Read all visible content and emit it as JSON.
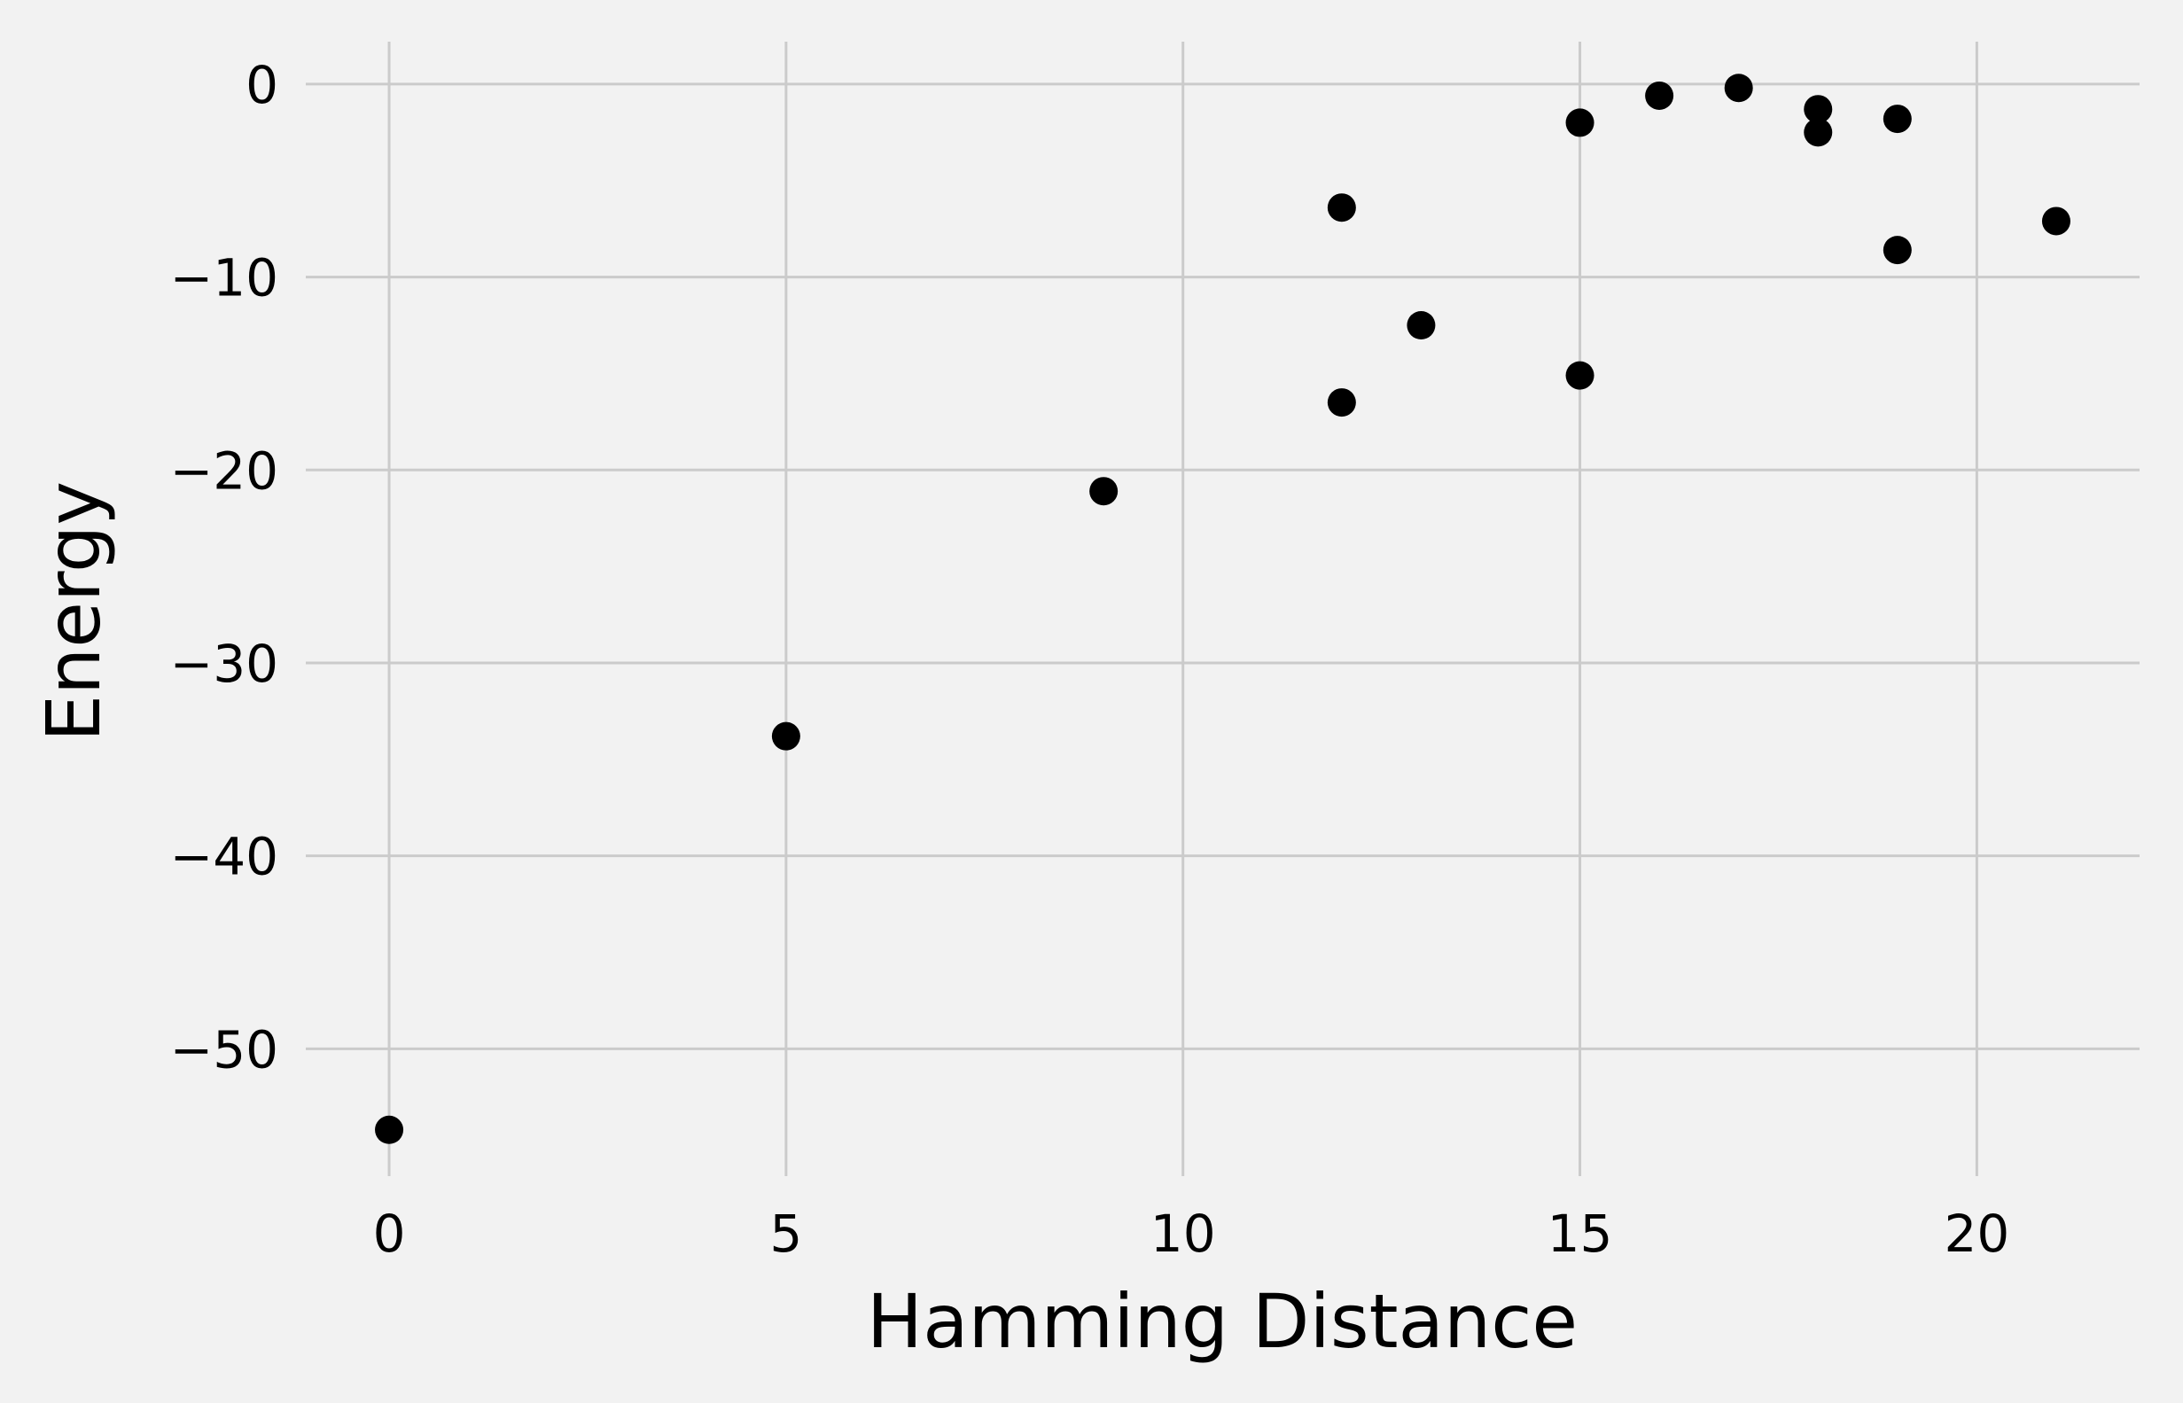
{
  "chart_data": {
    "type": "scatter",
    "title": "",
    "xlabel": "Hamming Distance",
    "ylabel": "Energy",
    "xlim": [
      -1.05,
      22.05
    ],
    "ylim": [
      -56.6,
      2.2
    ],
    "x_ticks": [
      0,
      5,
      10,
      15,
      20
    ],
    "y_ticks": [
      0,
      -10,
      -20,
      -30,
      -40,
      -50
    ],
    "x_tick_labels": [
      "0",
      "5",
      "10",
      "15",
      "20"
    ],
    "y_tick_labels": [
      "0",
      "−10",
      "−20",
      "−30",
      "−40",
      "−50"
    ],
    "grid": true,
    "point_color": "#000000",
    "background_color": "#f2f2f2",
    "grid_color": "#cbcbcb",
    "points": [
      {
        "x": 0,
        "y": -54.2
      },
      {
        "x": 5,
        "y": -33.8
      },
      {
        "x": 9,
        "y": -21.1
      },
      {
        "x": 12,
        "y": -6.4
      },
      {
        "x": 12,
        "y": -16.5
      },
      {
        "x": 13,
        "y": -12.5
      },
      {
        "x": 15,
        "y": -2.0
      },
      {
        "x": 15,
        "y": -15.1
      },
      {
        "x": 16,
        "y": -0.6
      },
      {
        "x": 17,
        "y": -0.2
      },
      {
        "x": 18,
        "y": -1.3
      },
      {
        "x": 18,
        "y": -2.5
      },
      {
        "x": 19,
        "y": -1.8
      },
      {
        "x": 19,
        "y": -8.6
      },
      {
        "x": 21,
        "y": -7.1
      }
    ]
  }
}
